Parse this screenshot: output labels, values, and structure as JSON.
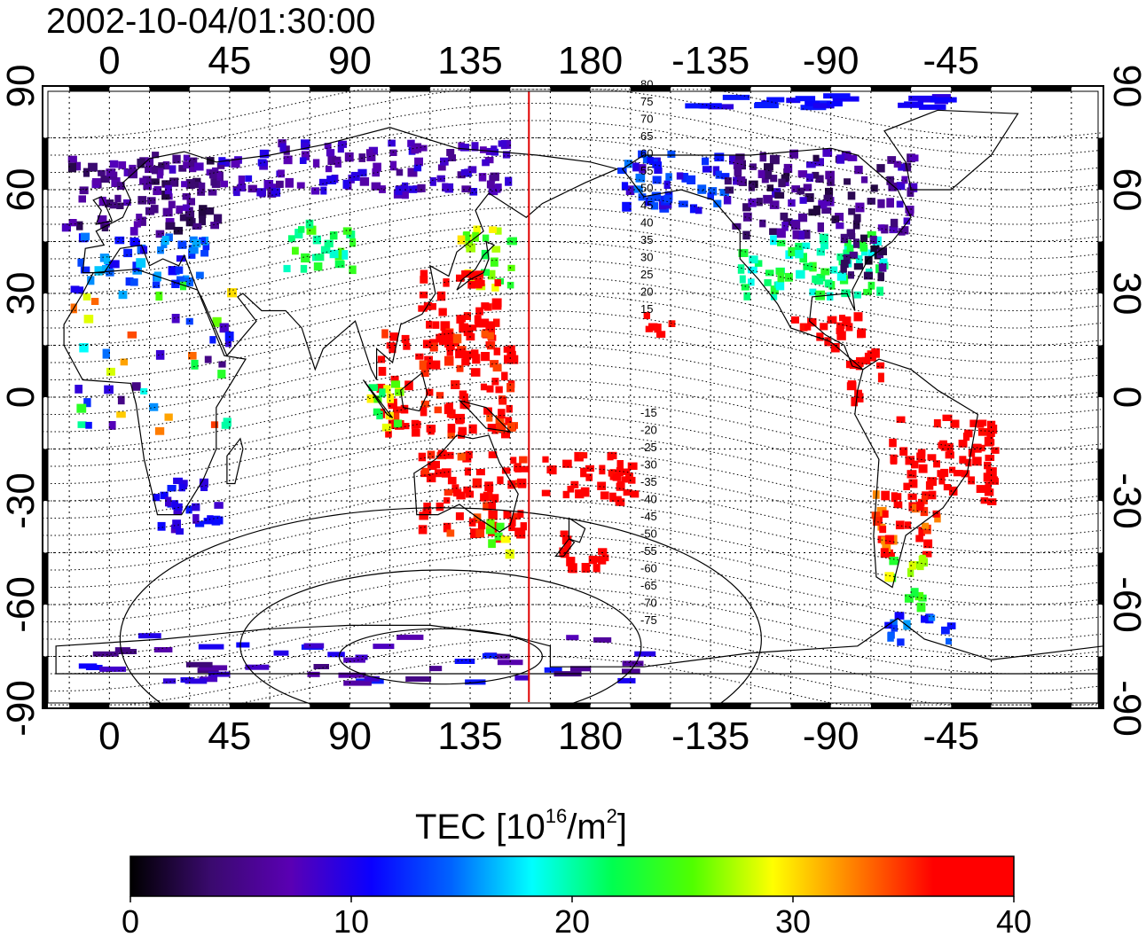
{
  "title": "2002-10-04/01:30:00",
  "map": {
    "lon_range": [
      -25,
      372
    ],
    "lat_range": [
      -90,
      90
    ],
    "lon_ticks": [
      {
        "value": 0,
        "label": "0"
      },
      {
        "value": 45,
        "label": "45"
      },
      {
        "value": 90,
        "label": "90"
      },
      {
        "value": 135,
        "label": "135"
      },
      {
        "value": 180,
        "label": "180"
      },
      {
        "value": 225,
        "label": "-135"
      },
      {
        "value": 270,
        "label": "-90"
      },
      {
        "value": 315,
        "label": "-45"
      }
    ],
    "lat_ticks": [
      {
        "value": 90,
        "label": "90"
      },
      {
        "value": 60,
        "label": "60"
      },
      {
        "value": 30,
        "label": "30"
      },
      {
        "value": 0,
        "label": "0"
      },
      {
        "value": -30,
        "label": "-30"
      },
      {
        "value": -60,
        "label": "-60"
      },
      {
        "value": -90,
        "label": "-90"
      }
    ],
    "grid": true,
    "marker_longitude": 157,
    "marker_color": "#e00000"
  },
  "magnetic_latitude_labels": [
    "80",
    "75",
    "70",
    "65",
    "60",
    "55",
    "50",
    "45",
    "40",
    "35",
    "30",
    "25",
    "20",
    "15",
    "-15",
    "-20",
    "-25",
    "-30",
    "-35",
    "-40",
    "-45",
    "-50",
    "-55",
    "-60",
    "-65",
    "-70",
    "-75"
  ],
  "colorbar": {
    "label_main": "TEC  [10",
    "label_exp": "16",
    "label_unit": "/m",
    "label_exp2": "2",
    "label_close": "]",
    "min": 0,
    "max": 40,
    "ticks": [
      {
        "value": 0,
        "label": "0"
      },
      {
        "value": 10,
        "label": "10"
      },
      {
        "value": 20,
        "label": "20"
      },
      {
        "value": 30,
        "label": "30"
      },
      {
        "value": 40,
        "label": "40"
      }
    ],
    "colors": [
      "#000000",
      "#3a0a6e",
      "#5a00b4",
      "#0a00ff",
      "#0064ff",
      "#00ffff",
      "#00ff50",
      "#50ff00",
      "#ffff00",
      "#ff8000",
      "#ff0000",
      "#ff0000"
    ]
  },
  "tec_regions": [
    {
      "name": "europe-north",
      "lon": [
        -18,
        40
      ],
      "lat": [
        48,
        70
      ],
      "tec": [
        2,
        8
      ]
    },
    {
      "name": "europe-south",
      "lon": [
        -12,
        35
      ],
      "lat": [
        33,
        48
      ],
      "tec": [
        10,
        17
      ]
    },
    {
      "name": "scandinavia",
      "lon": [
        15,
        40
      ],
      "lat": [
        60,
        72
      ],
      "tec": [
        4,
        9
      ]
    },
    {
      "name": "siberia",
      "lon": [
        40,
        150
      ],
      "lat": [
        60,
        75
      ],
      "tec": [
        5,
        10
      ]
    },
    {
      "name": "central-asia",
      "lon": [
        65,
        90
      ],
      "lat": [
        38,
        52
      ],
      "tec": [
        18,
        26
      ]
    },
    {
      "name": "japan",
      "lon": [
        130,
        150
      ],
      "lat": [
        32,
        50
      ],
      "tec": [
        22,
        30
      ]
    },
    {
      "name": "east-asia",
      "lon": [
        115,
        145
      ],
      "lat": [
        15,
        38
      ],
      "tec": [
        36,
        42
      ]
    },
    {
      "name": "south-china-sea",
      "lon": [
        100,
        150
      ],
      "lat": [
        -10,
        20
      ],
      "tec": [
        34,
        42
      ]
    },
    {
      "name": "sumatra",
      "lon": [
        95,
        110
      ],
      "lat": [
        -8,
        5
      ],
      "tec": [
        20,
        30
      ]
    },
    {
      "name": "australia",
      "lon": [
        115,
        155
      ],
      "lat": [
        -40,
        -15
      ],
      "tec": [
        34,
        42
      ]
    },
    {
      "name": "tasman",
      "lon": [
        140,
        150
      ],
      "lat": [
        -45,
        -35
      ],
      "tec": [
        24,
        32
      ]
    },
    {
      "name": "pacific-south",
      "lon": [
        160,
        195
      ],
      "lat": [
        -30,
        -15
      ],
      "tec": [
        36,
        42
      ]
    },
    {
      "name": "new-zealand",
      "lon": [
        165,
        185
      ],
      "lat": [
        -50,
        -38
      ],
      "tec": [
        36,
        42
      ]
    },
    {
      "name": "hawaii",
      "lon": [
        198,
        210
      ],
      "lat": [
        18,
        25
      ],
      "tec": [
        36,
        42
      ]
    },
    {
      "name": "alaska",
      "lon": [
        190,
        230
      ],
      "lat": [
        55,
        72
      ],
      "tec": [
        8,
        15
      ]
    },
    {
      "name": "canada",
      "lon": [
        230,
        300
      ],
      "lat": [
        48,
        72
      ],
      "tec": [
        2,
        9
      ]
    },
    {
      "name": "usa",
      "lon": [
        235,
        290
      ],
      "lat": [
        30,
        48
      ],
      "tec": [
        18,
        24
      ]
    },
    {
      "name": "usa-east",
      "lon": [
        270,
        290
      ],
      "lat": [
        35,
        48
      ],
      "tec": [
        1,
        6
      ]
    },
    {
      "name": "mexico",
      "lon": [
        255,
        280
      ],
      "lat": [
        15,
        25
      ],
      "tec": [
        36,
        42
      ]
    },
    {
      "name": "central-america",
      "lon": [
        275,
        290
      ],
      "lat": [
        0,
        15
      ],
      "tec": [
        36,
        42
      ]
    },
    {
      "name": "brazil",
      "lon": [
        290,
        330
      ],
      "lat": [
        -30,
        -5
      ],
      "tec": [
        36,
        42
      ]
    },
    {
      "name": "argentina",
      "lon": [
        285,
        310
      ],
      "lat": [
        -45,
        -25
      ],
      "tec": [
        32,
        42
      ]
    },
    {
      "name": "patagonia",
      "lon": [
        290,
        305
      ],
      "lat": [
        -60,
        -45
      ],
      "tec": [
        22,
        30
      ]
    },
    {
      "name": "antarctic-peninsula",
      "lon": [
        290,
        315
      ],
      "lat": [
        -70,
        -62
      ],
      "tec": [
        10,
        16
      ]
    },
    {
      "name": "south-africa",
      "lon": [
        15,
        40
      ],
      "lat": [
        -38,
        -23
      ],
      "tec": [
        8,
        12
      ]
    },
    {
      "name": "antarctica",
      "lon": [
        -20,
        200
      ],
      "lat": [
        -82,
        -68
      ],
      "tec": [
        4,
        12
      ]
    },
    {
      "name": "arctic-ice",
      "lon": [
        215,
        310
      ],
      "lat": [
        84,
        88
      ],
      "tec": [
        9,
        12
      ]
    },
    {
      "name": "africa-sparse",
      "lon": [
        -15,
        45
      ],
      "lat": [
        -10,
        35
      ],
      "tec": [
        4,
        36
      ]
    }
  ]
}
